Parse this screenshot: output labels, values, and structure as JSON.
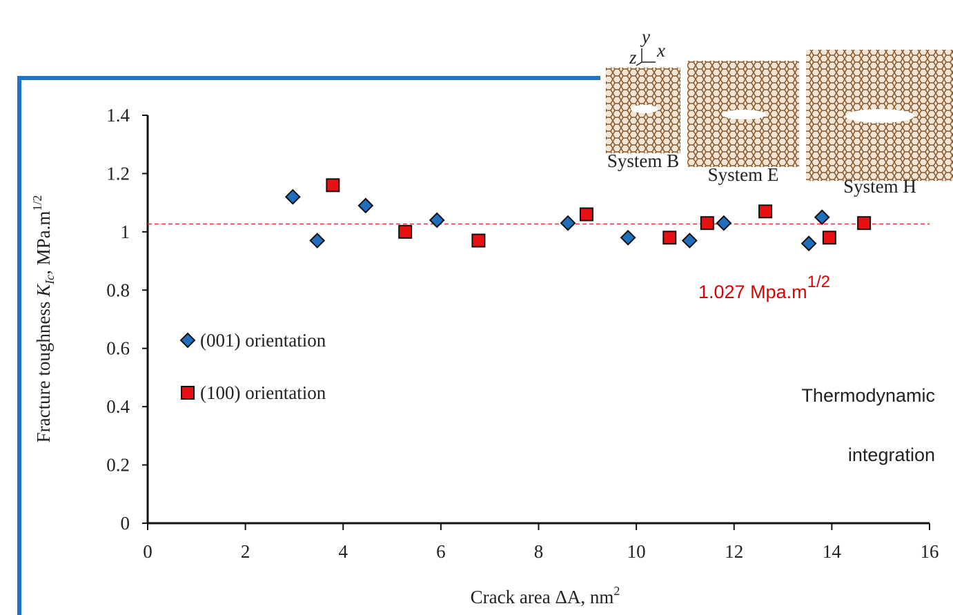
{
  "chart_data": {
    "type": "scatter",
    "x_label": {
      "text": "Crack area ΔA, nm",
      "sup": "2"
    },
    "y_label": {
      "text": "Fracture toughness ",
      "var": "K",
      "sub": "Ic",
      "unit": ", MPa.m",
      "sup": "1/2"
    },
    "xlim": [
      0,
      16
    ],
    "xticks": [
      0,
      2,
      4,
      6,
      8,
      10,
      12,
      14,
      16
    ],
    "ylim": [
      0,
      1.4
    ],
    "yticks": [
      0,
      0.2,
      0.4,
      0.6,
      0.8,
      1,
      1.2,
      1.4
    ],
    "series": [
      {
        "name": "(001) orientation",
        "marker": "diamond",
        "color": "#1f6fbf",
        "x": [
          2.97,
          3.47,
          4.46,
          5.92,
          8.6,
          9.83,
          11.09,
          11.79,
          13.53,
          13.8
        ],
        "values": [
          1.12,
          0.97,
          1.09,
          1.04,
          1.03,
          0.98,
          0.97,
          1.03,
          0.96,
          1.05
        ]
      },
      {
        "name": "(100) orientation",
        "marker": "square",
        "color": "#e81010",
        "x": [
          3.79,
          5.27,
          6.77,
          8.98,
          10.68,
          11.45,
          12.64,
          13.95,
          14.66
        ],
        "values": [
          1.16,
          1.0,
          0.97,
          1.06,
          0.98,
          1.03,
          1.07,
          0.98,
          1.03
        ]
      }
    ],
    "ref_line": {
      "value": 1.027,
      "color": "#e83030"
    },
    "annotation": {
      "text": "1.027 Mpa.m",
      "sup": "1/2",
      "color": "#e00000"
    },
    "method_label": [
      "Thermodynamic",
      "integration"
    ],
    "inset": {
      "systems": [
        "System B",
        "System E",
        "System H"
      ],
      "axes": [
        "y",
        "z",
        "x"
      ]
    }
  }
}
